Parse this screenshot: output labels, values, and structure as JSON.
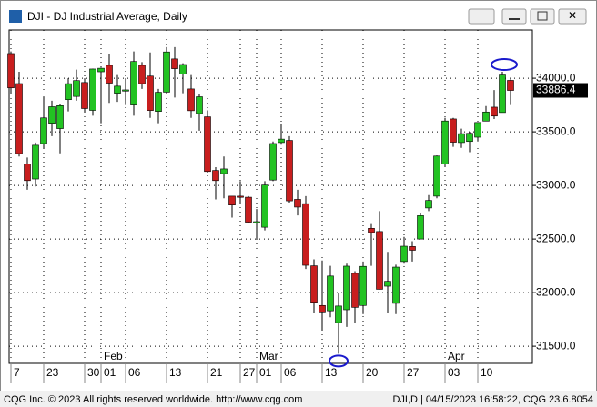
{
  "chart_data": {
    "type": "candlestick",
    "title": "DJI - DJ Industrial Average, Daily",
    "categories": [
      "7",
      null,
      null,
      null,
      "23",
      null,
      null,
      null,
      null,
      "30",
      null,
      "01",
      null,
      null,
      "06",
      null,
      null,
      null,
      null,
      "13",
      null,
      null,
      null,
      null,
      "21",
      null,
      null,
      null,
      "27",
      null,
      "01",
      null,
      null,
      "06",
      null,
      null,
      null,
      null,
      "13",
      null,
      null,
      null,
      null,
      "20",
      null,
      null,
      null,
      null,
      "27",
      null,
      null,
      null,
      null,
      "03",
      null,
      null,
      null,
      "10",
      null,
      null,
      null,
      null
    ],
    "months": [
      null,
      null,
      null,
      null,
      null,
      null,
      null,
      null,
      null,
      null,
      null,
      "Feb",
      null,
      null,
      null,
      null,
      null,
      null,
      null,
      null,
      null,
      null,
      null,
      null,
      null,
      null,
      null,
      null,
      null,
      null,
      "Mar",
      null,
      null,
      null,
      null,
      null,
      null,
      null,
      null,
      null,
      null,
      null,
      null,
      null,
      null,
      null,
      null,
      null,
      null,
      null,
      null,
      null,
      null,
      "Apr",
      null,
      null,
      null,
      null,
      null,
      null,
      null,
      null
    ],
    "open": [
      34230,
      33950,
      33200,
      33060,
      33390,
      33580,
      33530,
      33800,
      33830,
      33960,
      33700,
      34060,
      34120,
      33860,
      33880,
      33750,
      34120,
      34020,
      33690,
      33870,
      34180,
      34040,
      33900,
      33670,
      33640,
      33140,
      33110,
      32900,
      32900,
      32890,
      32650,
      32610,
      33050,
      33400,
      33420,
      32870,
      32830,
      32250,
      31880,
      31830,
      31720,
      31840,
      32180,
      31880,
      32600,
      32570,
      32060,
      31900,
      32290,
      32430,
      32500,
      32790,
      32900,
      33200,
      33620,
      33400,
      33410,
      33450,
      33600,
      33730,
      33680,
      33980
    ],
    "high": [
      34250,
      34060,
      33260,
      33400,
      33830,
      33790,
      33760,
      34000,
      34080,
      34000,
      34090,
      34100,
      34230,
      34030,
      34000,
      34250,
      34150,
      34240,
      33900,
      34290,
      34290,
      34140,
      34030,
      33850,
      33700,
      33170,
      33270,
      32900,
      33040,
      32900,
      32780,
      33040,
      33410,
      33570,
      33460,
      32960,
      32900,
      32310,
      32300,
      32250,
      32000,
      32270,
      32200,
      32290,
      32640,
      32760,
      32380,
      32260,
      32520,
      32480,
      32740,
      32910,
      33280,
      33630,
      33630,
      33530,
      33500,
      33590,
      33740,
      33890,
      34060,
      33990
    ],
    "low": [
      33850,
      33270,
      32960,
      32990,
      33340,
      33460,
      33300,
      33690,
      33790,
      33680,
      33650,
      33580,
      33770,
      33780,
      33750,
      33650,
      33900,
      33630,
      33580,
      33850,
      33820,
      33860,
      33630,
      33510,
      33120,
      32870,
      32880,
      32700,
      32830,
      32650,
      32500,
      32580,
      33040,
      33380,
      32840,
      32720,
      32220,
      31810,
      31650,
      31770,
      31430,
      31680,
      31720,
      31800,
      32250,
      32030,
      31810,
      31800,
      32270,
      32290,
      32500,
      32760,
      32880,
      33170,
      33360,
      33350,
      33310,
      33410,
      33600,
      33620,
      33680,
      33750
    ],
    "close": [
      33910,
      33297,
      33045,
      33375,
      33630,
      33734,
      33744,
      33949,
      33978,
      33717,
      34086,
      34093,
      33954,
      33926,
      33891,
      34156,
      33949,
      33699,
      33869,
      34245,
      34089,
      34128,
      33697,
      33827,
      33130,
      33045,
      33154,
      32817,
      32889,
      32657,
      32662,
      33004,
      33391,
      33432,
      32856,
      32798,
      32255,
      31910,
      31820,
      32155,
      31875,
      32247,
      31862,
      32245,
      32561,
      32031,
      32106,
      32238,
      32433,
      32395,
      32718,
      32860,
      33274,
      33601,
      33403,
      33483,
      33486,
      33587,
      33685,
      33647,
      34030,
      33886
    ],
    "up_color": "#22c322",
    "down_color": "#c81e1e",
    "ylim": [
      31340,
      34450
    ],
    "yticks": [
      {
        "value": 31500,
        "label": "31500.0"
      },
      {
        "value": 32000,
        "label": "32000.0"
      },
      {
        "value": 32500,
        "label": "32500.0"
      },
      {
        "value": 33000,
        "label": "33000.0"
      },
      {
        "value": 33500,
        "label": "33500.0"
      },
      {
        "value": 34000,
        "label": "34000.0"
      }
    ],
    "last_price": 33886.4,
    "grid": true
  },
  "status": {
    "copyright": "CQG Inc. © 2023 All rights reserved worldwide. http://www.cqg.com",
    "info": "DJI,D | 04/15/2023 16:58:22, CQG 23.6.8054"
  }
}
